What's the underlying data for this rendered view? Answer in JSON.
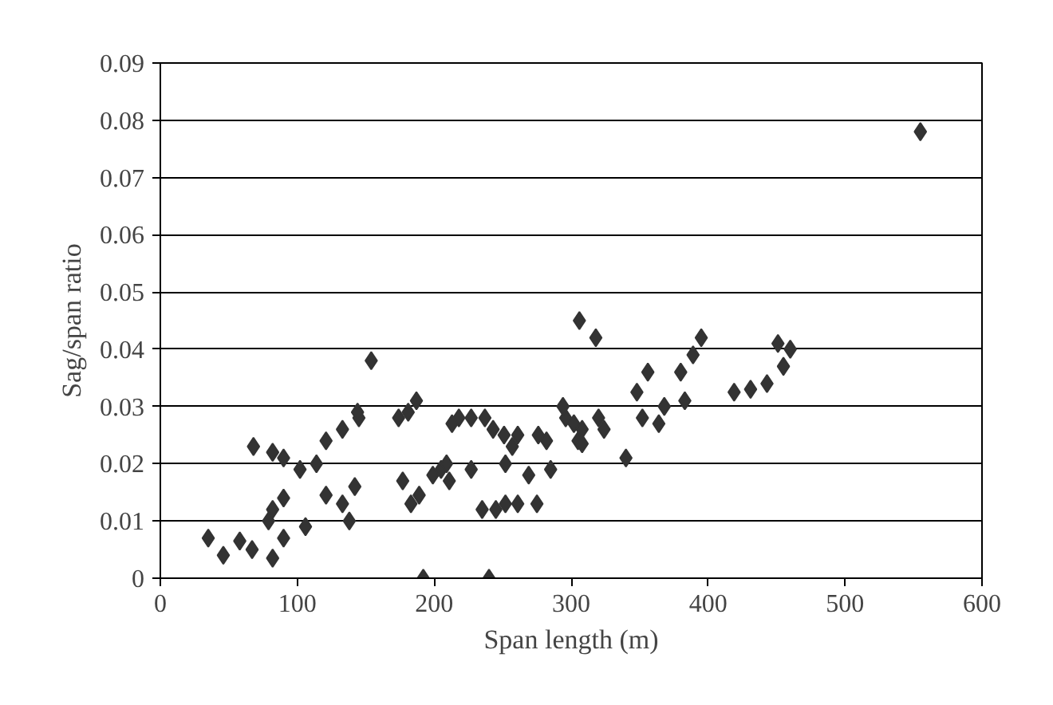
{
  "chart_data": {
    "type": "scatter",
    "xlabel": "Span length (m)",
    "ylabel": "Sag/span ratio",
    "xlim": [
      0,
      600
    ],
    "ylim": [
      0,
      0.09
    ],
    "xticks": [
      0,
      100,
      200,
      300,
      400,
      500,
      600
    ],
    "yticks": [
      0,
      0.01,
      0.02,
      0.03,
      0.04,
      0.05,
      0.06,
      0.07,
      0.08,
      0.09
    ],
    "grid": "y",
    "marker": "diamond",
    "series": [
      {
        "color": "#333333",
        "x": [
          240,
          192,
          82,
          67,
          46,
          35,
          58,
          90,
          106,
          82,
          79,
          90,
          138,
          133,
          121,
          142,
          114,
          102,
          90,
          82,
          68,
          121,
          133,
          145,
          144,
          154,
          189,
          183,
          177,
          187,
          181,
          174,
          211,
          205,
          199,
          209,
          227,
          235,
          245,
          252,
          261,
          275,
          269,
          285,
          252,
          257,
          251,
          261,
          243,
          237,
          227,
          218,
          213,
          282,
          276,
          296,
          305,
          308,
          294,
          320,
          318,
          306,
          340,
          324,
          308,
          302,
          352,
          364,
          368,
          348,
          356,
          383,
          380,
          389,
          395,
          419,
          431,
          443,
          455,
          451,
          460,
          555
        ],
        "values": [
          0.0,
          0.0,
          0.0035,
          0.005,
          0.004,
          0.007,
          0.0065,
          0.007,
          0.009,
          0.012,
          0.01,
          0.014,
          0.01,
          0.013,
          0.0145,
          0.016,
          0.02,
          0.019,
          0.021,
          0.022,
          0.023,
          0.024,
          0.026,
          0.028,
          0.029,
          0.038,
          0.0145,
          0.013,
          0.017,
          0.031,
          0.029,
          0.028,
          0.017,
          0.019,
          0.018,
          0.02,
          0.019,
          0.012,
          0.012,
          0.013,
          0.013,
          0.013,
          0.018,
          0.019,
          0.02,
          0.023,
          0.025,
          0.025,
          0.026,
          0.028,
          0.028,
          0.028,
          0.027,
          0.024,
          0.025,
          0.028,
          0.024,
          0.026,
          0.03,
          0.028,
          0.042,
          0.045,
          0.021,
          0.026,
          0.0235,
          0.027,
          0.028,
          0.027,
          0.03,
          0.0325,
          0.036,
          0.031,
          0.036,
          0.039,
          0.042,
          0.0325,
          0.033,
          0.034,
          0.037,
          0.041,
          0.04,
          0.078
        ]
      }
    ]
  }
}
